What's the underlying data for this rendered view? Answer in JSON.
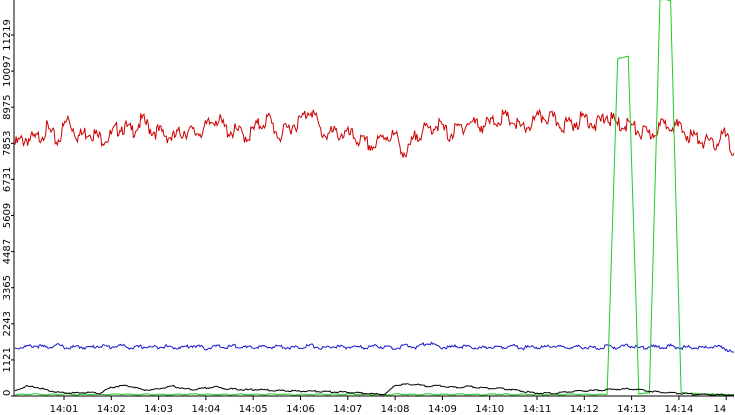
{
  "chart_data": {
    "type": "line",
    "title": "",
    "xlabel": "",
    "ylabel": "",
    "ylim": [
      0,
      12219
    ],
    "y_ticks": [
      "0",
      "1121",
      "2243",
      "3365",
      "4487",
      "5609",
      "6731",
      "7853",
      "8975",
      "10097",
      "11219"
    ],
    "x_ticks": [
      "14:01",
      "14:02",
      "14:03",
      "14:04",
      "14:05",
      "14:06",
      "14:07",
      "14:08",
      "14:09",
      "14:10",
      "14:11",
      "14:12",
      "14:13",
      "14:14",
      "14"
    ],
    "grid": false,
    "legend": "none",
    "series": [
      {
        "color": "#cc0000",
        "values": [
          7750,
          7950,
          7900,
          8250,
          7850,
          8550,
          8000,
          8200,
          7950,
          8000,
          8350,
          8150,
          8500,
          8200,
          8100,
          7950,
          8200,
          8100,
          8250,
          8600,
          8200,
          8150,
          8000,
          8350,
          8550,
          8000,
          8300,
          8500,
          8900,
          8100,
          8100,
          8100,
          8000,
          7800,
          7700,
          8050,
          8000,
          7400,
          8100,
          8200,
          8400,
          8050,
          8250,
          8450,
          8350,
          8400,
          8600,
          8500,
          8200,
          8450,
          8650,
          8500,
          8350,
          8450,
          8600,
          8350,
          8650,
          8350,
          8400,
          8150,
          8050,
          8300,
          8450,
          8200,
          8000,
          7900,
          7700,
          8100,
          7500
        ]
      },
      {
        "color": "#1a1acc",
        "values": [
          1480,
          1520,
          1550,
          1500,
          1570,
          1480,
          1520,
          1490,
          1550,
          1510,
          1560,
          1480,
          1520,
          1500,
          1540,
          1490,
          1510,
          1560,
          1470,
          1530,
          1500,
          1550,
          1480,
          1520,
          1500,
          1540,
          1490,
          1510,
          1560,
          1470,
          1530,
          1500,
          1520,
          1490,
          1540,
          1510,
          1480,
          1550,
          1500,
          1650,
          1520,
          1490,
          1540,
          1500,
          1470,
          1520,
          1510,
          1550,
          1480,
          1520,
          1500,
          1540,
          1480,
          1520,
          1510,
          1470,
          1530,
          1500,
          1560,
          1480,
          1520,
          1500,
          1540,
          1490,
          1510,
          1480,
          1530,
          1500,
          1300
        ]
      },
      {
        "color": "#22cc22",
        "values": [
          40,
          50,
          60,
          45,
          50,
          55,
          40,
          50,
          45,
          50,
          60,
          45,
          50,
          55,
          40,
          45,
          50,
          60,
          45,
          50,
          40,
          55,
          50,
          45,
          50,
          60,
          45,
          40,
          50,
          55,
          45,
          50,
          60,
          45,
          50,
          40,
          55,
          50,
          45,
          60,
          50,
          45,
          55,
          50,
          40,
          50,
          60,
          45,
          50,
          55,
          45,
          40,
          50,
          60,
          45,
          50,
          55,
          10400,
          10500,
          80,
          90,
          12219,
          12219,
          100,
          80,
          60,
          50,
          40,
          40
        ]
      },
      {
        "color": "#000000",
        "values": [
          150,
          300,
          280,
          180,
          120,
          100,
          90,
          110,
          80,
          250,
          320,
          300,
          200,
          180,
          250,
          300,
          220,
          200,
          250,
          280,
          220,
          210,
          190,
          200,
          180,
          170,
          160,
          150,
          150,
          140,
          130,
          120,
          100,
          90,
          60,
          50,
          340,
          360,
          350,
          300,
          320,
          280,
          260,
          300,
          250,
          240,
          230,
          200,
          150,
          100,
          90,
          80,
          120,
          150,
          160,
          170,
          200,
          210,
          220,
          200,
          150,
          120,
          100,
          80,
          60,
          50,
          40,
          40,
          30
        ]
      }
    ]
  }
}
